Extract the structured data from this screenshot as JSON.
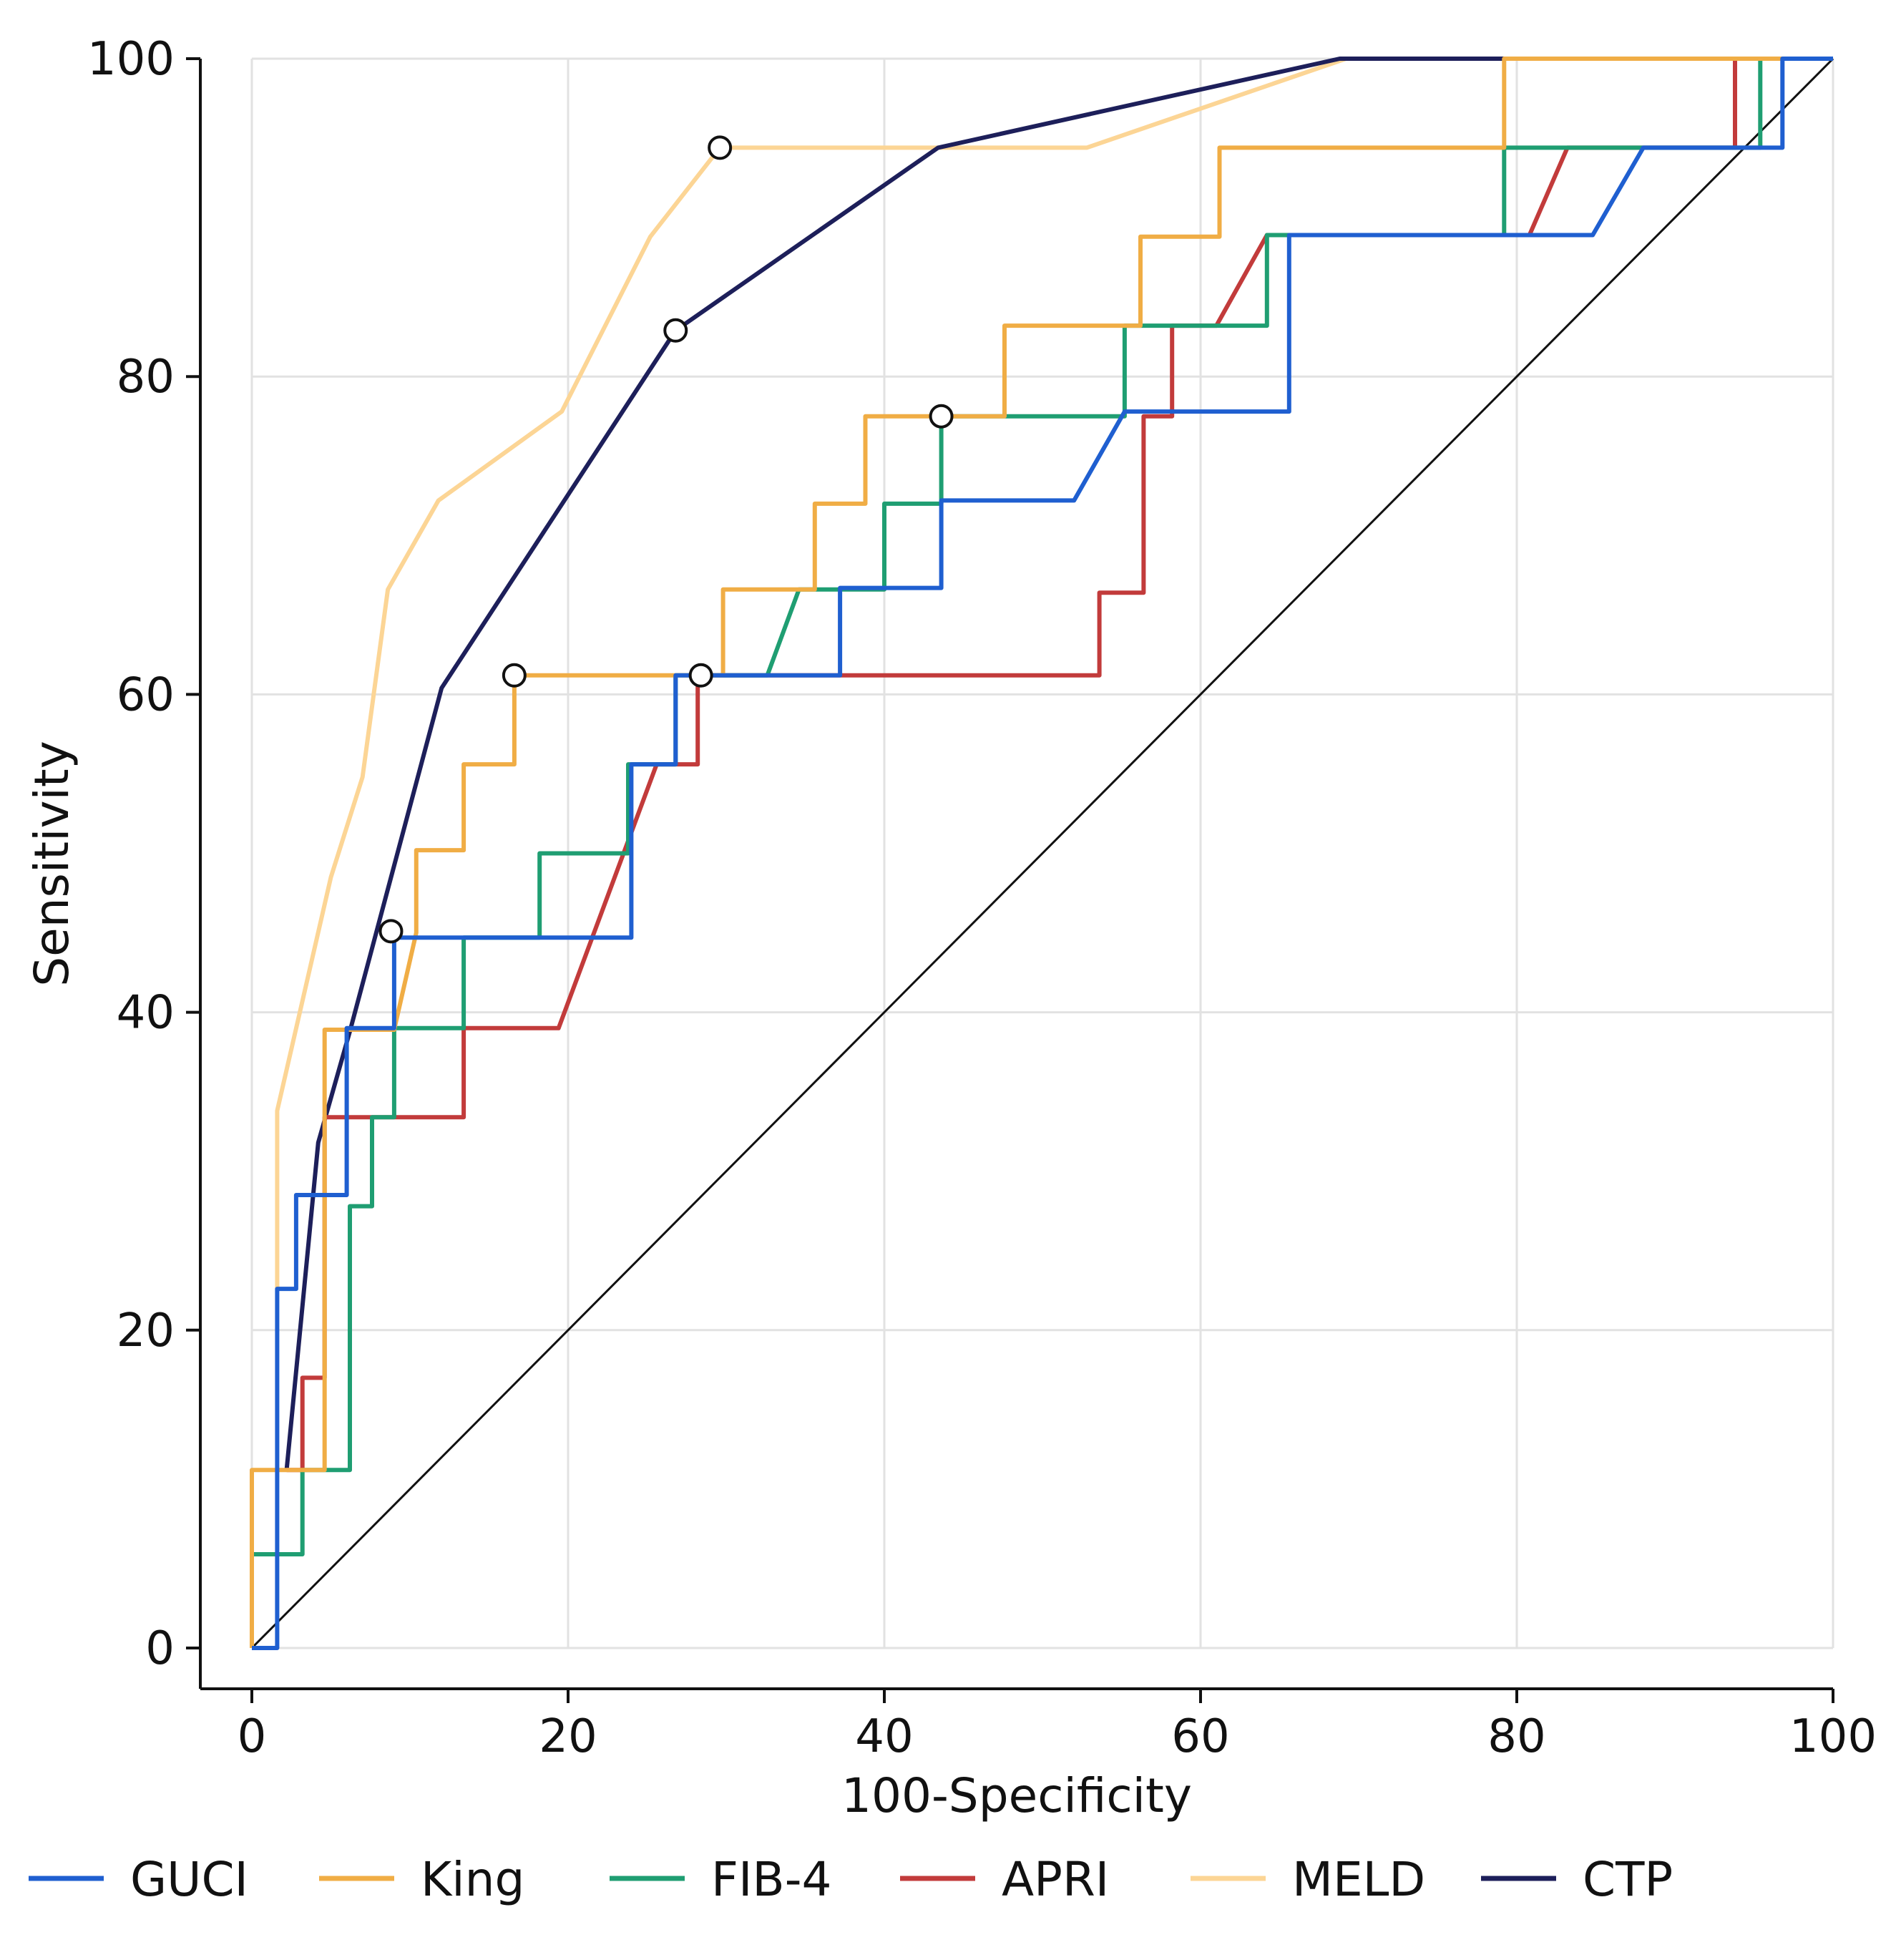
{
  "chart_data": {
    "type": "line",
    "title": "",
    "xlabel": "100-Specificity",
    "ylabel": "Sensitivity",
    "xlim": [
      0,
      100
    ],
    "ylim": [
      0,
      100
    ],
    "xticks": [
      0,
      20,
      40,
      60,
      80,
      100
    ],
    "yticks": [
      0,
      20,
      40,
      60,
      80,
      100
    ],
    "grid": true,
    "legend_position": "bottom",
    "reference_line": {
      "name": "chance",
      "x": [
        0,
        100
      ],
      "y": [
        0,
        100
      ],
      "color": "#111111"
    },
    "series": [
      {
        "name": "GUCI",
        "color": "#1f5fd0",
        "x": [
          0,
          1.6,
          1.6,
          2.8,
          2.8,
          6,
          6,
          9,
          9,
          24,
          24,
          26.8,
          26.8,
          37.2,
          37.2,
          43.6,
          43.6,
          52,
          55.2,
          65.6,
          65.6,
          84.8,
          88,
          96.8,
          96.8,
          100
        ],
        "y": [
          0,
          0,
          22.6,
          22.6,
          28.5,
          28.5,
          39,
          39,
          44.7,
          44.7,
          55.6,
          55.6,
          61.2,
          61.2,
          66.7,
          66.7,
          72.2,
          72.2,
          77.8,
          77.8,
          88.9,
          88.9,
          94.4,
          94.4,
          100,
          100
        ]
      },
      {
        "name": "King",
        "color": "#f0ad45",
        "x": [
          0,
          0,
          4.6,
          4.6,
          9,
          10.4,
          10.4,
          13.4,
          13.4,
          16.6,
          16.6,
          29.8,
          29.8,
          35.6,
          35.6,
          38.8,
          38.8,
          47.6,
          47.6,
          56.2,
          56.2,
          61.2,
          61.2,
          79.2,
          79.2,
          96.8,
          100
        ],
        "y": [
          0,
          11.2,
          11.2,
          38.9,
          38.9,
          45,
          50.2,
          50.2,
          55.6,
          55.6,
          61.2,
          61.2,
          66.6,
          66.6,
          72,
          72,
          77.5,
          77.5,
          83.2,
          83.2,
          88.8,
          88.8,
          94.4,
          94.4,
          100,
          100,
          100
        ]
      },
      {
        "name": "FIB-4",
        "color": "#1f9e72",
        "x": [
          0,
          3.2,
          3.2,
          6.2,
          6.2,
          7.6,
          7.6,
          9,
          9,
          13.4,
          13.4,
          18.2,
          18.2,
          23.8,
          23.8,
          26.8,
          26.8,
          32.6,
          34.6,
          40,
          40,
          43.6,
          43.6,
          55.2,
          55.2,
          64.2,
          64.2,
          79.2,
          79.2,
          95.4,
          95.4,
          100
        ],
        "y": [
          5.9,
          5.9,
          11.2,
          11.2,
          27.8,
          27.8,
          33.4,
          33.4,
          39,
          39,
          44.7,
          44.7,
          50,
          50,
          55.6,
          55.6,
          61.2,
          61.2,
          66.6,
          66.6,
          72,
          72,
          77.5,
          77.5,
          83.2,
          83.2,
          88.9,
          88.9,
          94.4,
          94.4,
          100,
          100
        ]
      },
      {
        "name": "APRI",
        "color": "#c23b3b",
        "x": [
          2.2,
          3.2,
          3.2,
          4.6,
          4.6,
          13.4,
          13.4,
          19.4,
          25.6,
          28.2,
          28.2,
          53.6,
          53.6,
          56.4,
          56.4,
          58.2,
          58.2,
          61,
          64.2,
          80.8,
          83.2,
          93.8,
          93.8,
          100
        ],
        "y": [
          11.2,
          11.2,
          17,
          17,
          33.4,
          33.4,
          39,
          39,
          55.6,
          55.6,
          61.2,
          61.2,
          66.4,
          66.4,
          77.5,
          77.5,
          83.2,
          83.2,
          88.9,
          88.9,
          94.4,
          94.4,
          100,
          100
        ]
      },
      {
        "name": "MELD",
        "color": "#fcd595",
        "x": [
          1.6,
          1.6,
          5,
          7,
          8.6,
          11.8,
          19.6,
          25.2,
          29.6,
          52.8,
          69.2,
          100
        ],
        "y": [
          22.6,
          33.8,
          48.5,
          54.8,
          66.6,
          72.2,
          77.8,
          88.8,
          94.4,
          94.4,
          100,
          100
        ]
      },
      {
        "name": "CTP",
        "color": "#1d1f5a",
        "x": [
          2.2,
          4.2,
          6.2,
          12,
          26.8,
          43.4,
          68.8,
          100
        ],
        "y": [
          11.2,
          31.8,
          38.8,
          60.4,
          82.9,
          94.4,
          100,
          100
        ]
      }
    ],
    "markers": [
      {
        "x": 8.8,
        "y": 45.1
      },
      {
        "x": 16.6,
        "y": 61.2
      },
      {
        "x": 26.8,
        "y": 82.9
      },
      {
        "x": 28.4,
        "y": 61.2
      },
      {
        "x": 29.6,
        "y": 94.4
      },
      {
        "x": 43.6,
        "y": 77.5
      }
    ]
  }
}
